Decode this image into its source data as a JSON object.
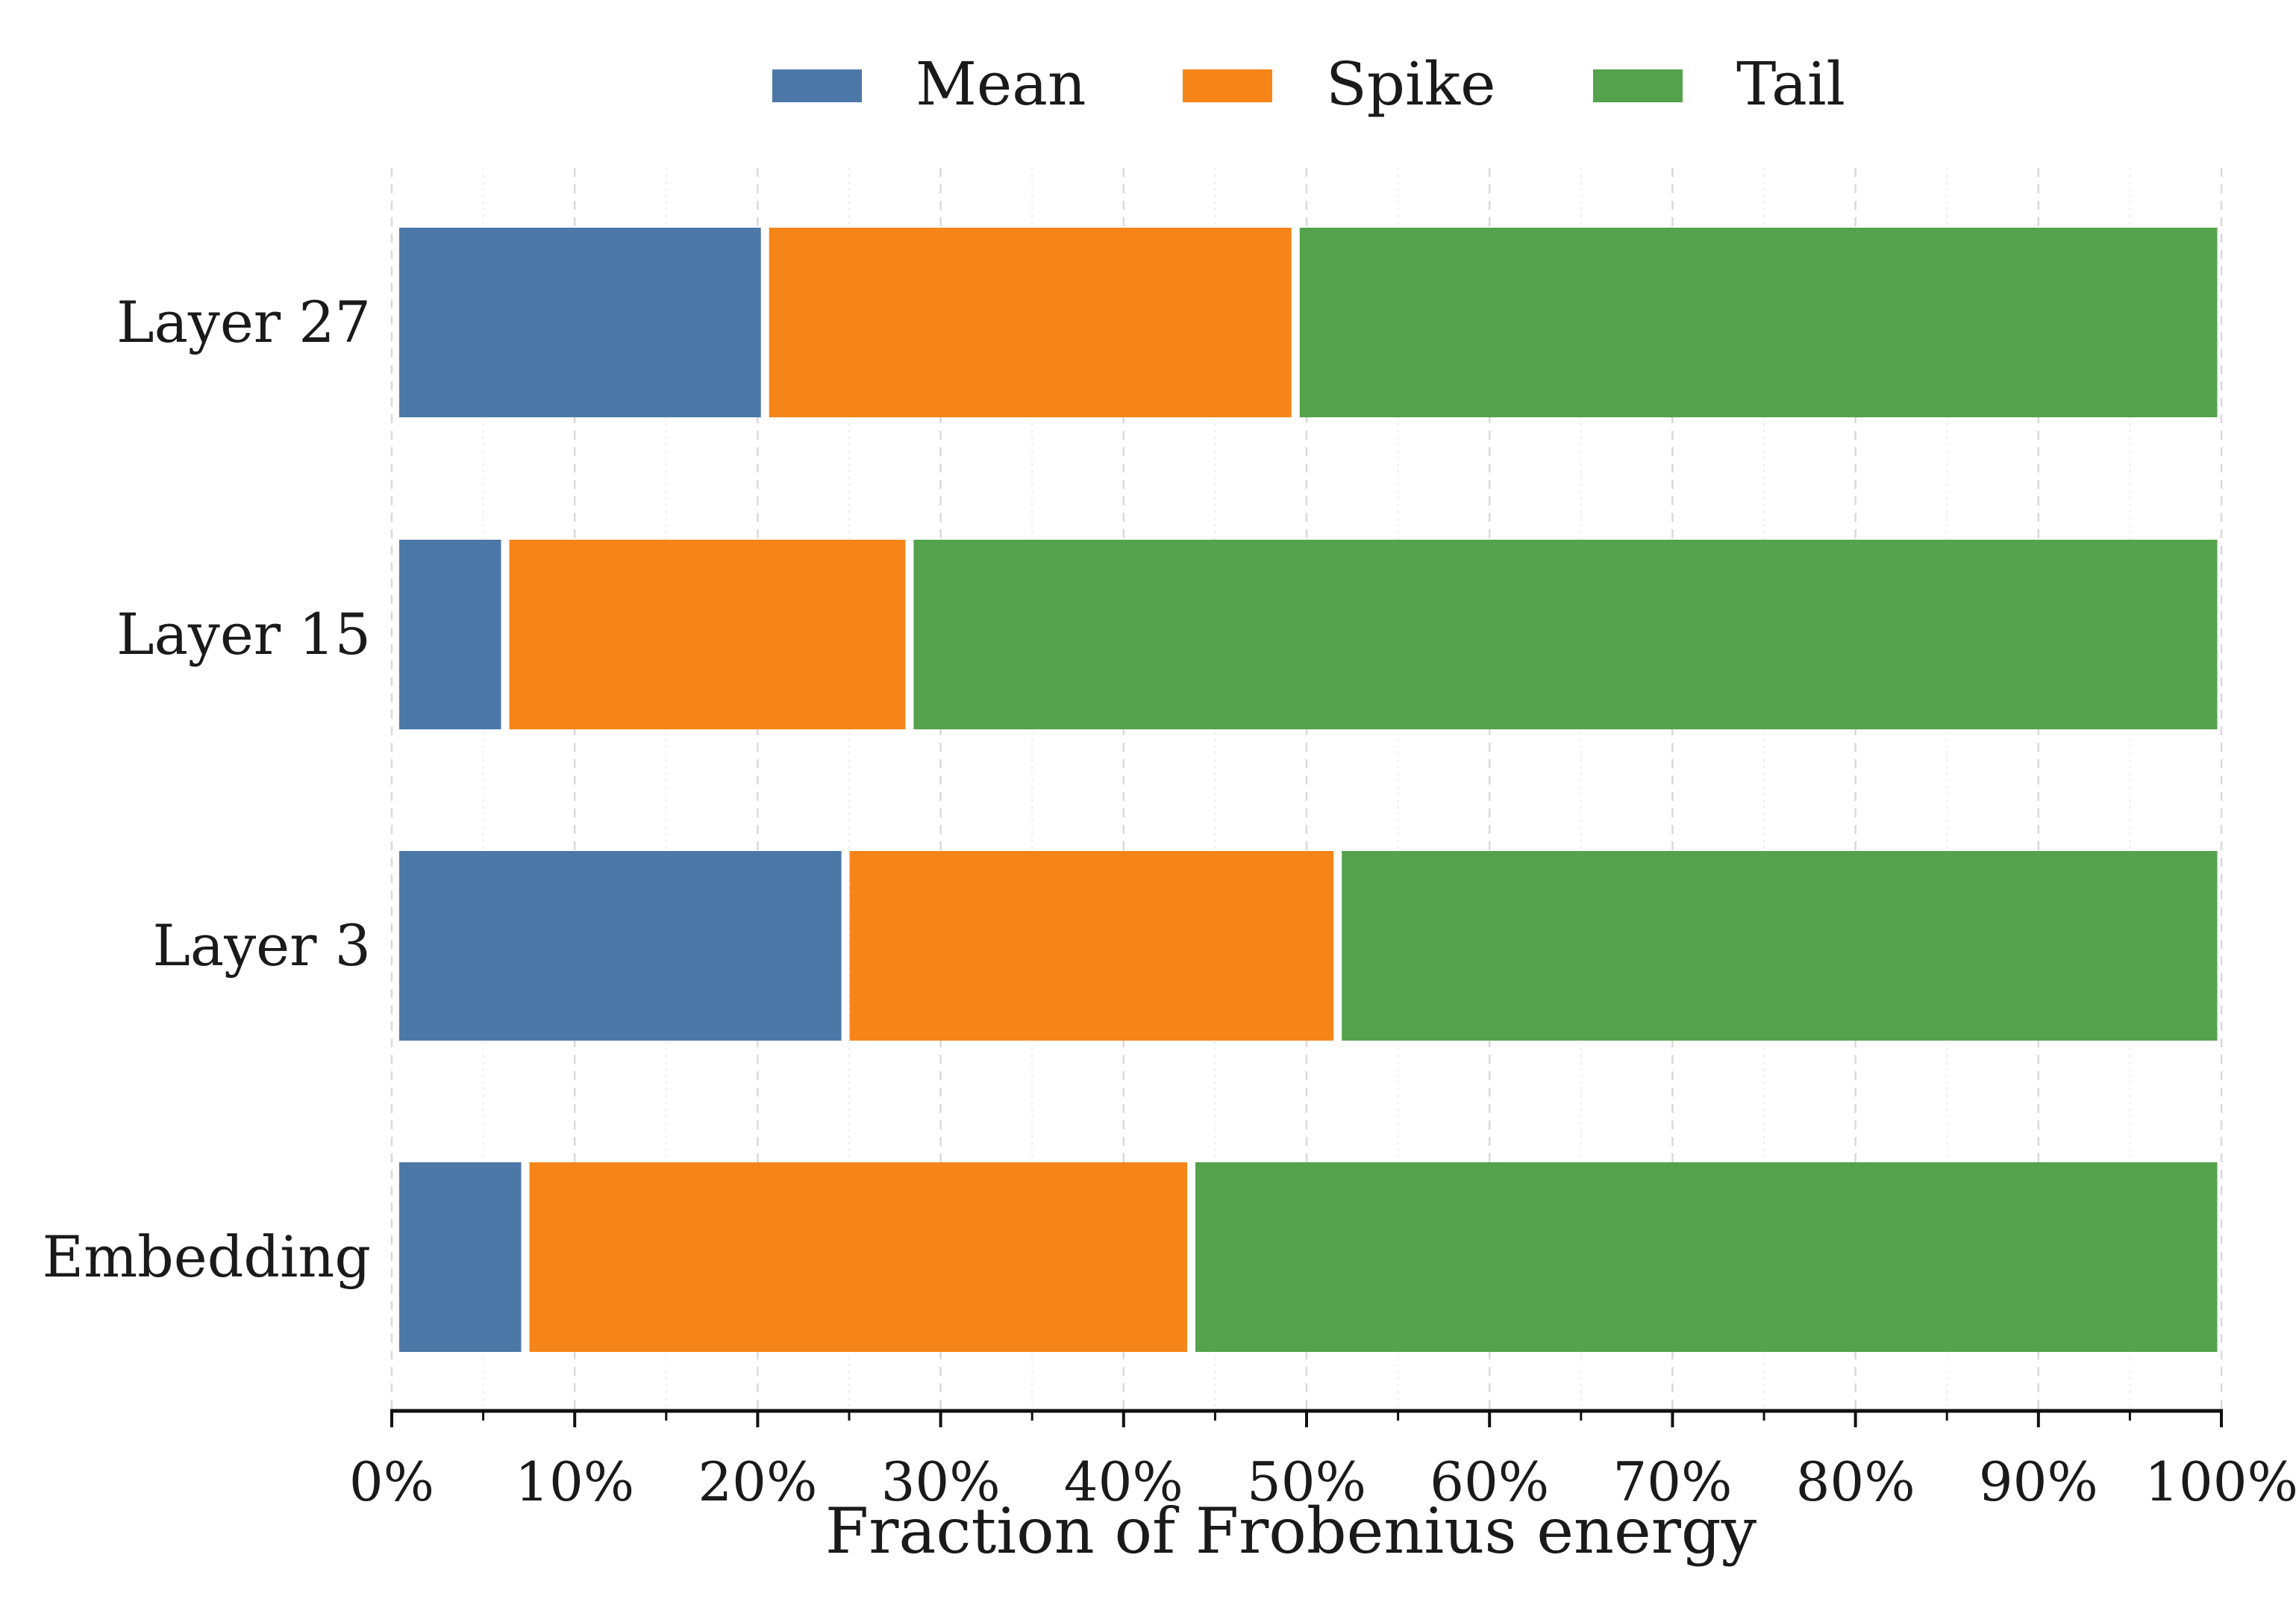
{
  "chart_data": {
    "type": "bar",
    "orientation": "horizontal",
    "stacked": true,
    "categories": [
      "Layer 27",
      "Layer 15",
      "Layer 3",
      "Embedding"
    ],
    "series": [
      {
        "name": "Mean",
        "color": "#4c78a8",
        "values": [
          20.4,
          6.2,
          24.8,
          7.3
        ]
      },
      {
        "name": "Spike",
        "color": "#f58518",
        "values": [
          29.0,
          22.1,
          26.9,
          36.4
        ]
      },
      {
        "name": "Tail",
        "color": "#54a24b",
        "values": [
          50.6,
          71.7,
          48.3,
          56.3
        ]
      }
    ],
    "xlabel": "Fraction of Frobenius energy",
    "ylabel": "",
    "title": "",
    "xlim": [
      0,
      100
    ],
    "x_ticks": [
      "0%",
      "10%",
      "20%",
      "30%",
      "40%",
      "50%",
      "60%",
      "70%",
      "80%",
      "90%",
      "100%"
    ],
    "grid": "vertical dashed",
    "legend_position": "top-center"
  }
}
